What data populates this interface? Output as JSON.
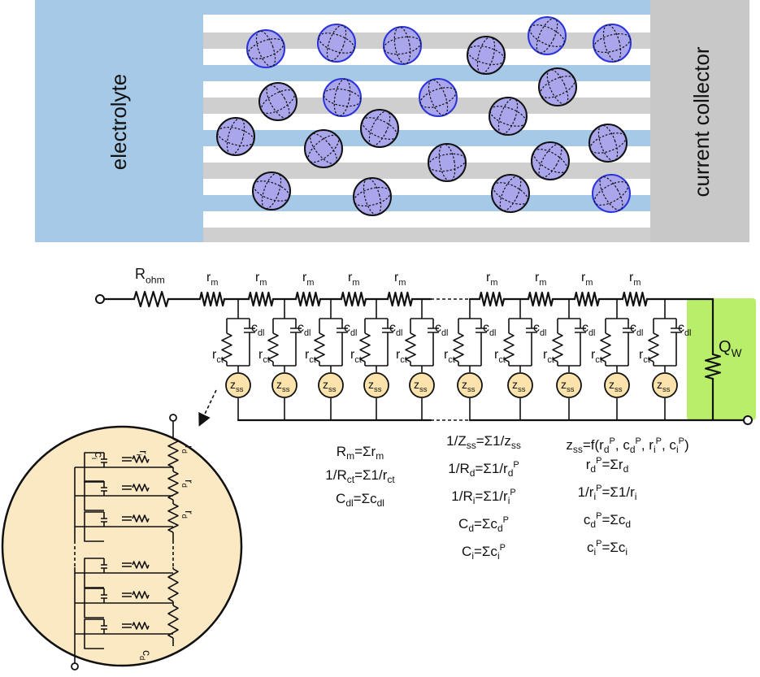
{
  "top_panel": {
    "left_label": "electrolyte",
    "right_label": "current collector"
  },
  "circuit": {
    "r_ohm": "R",
    "r_ohm_sub": "ohm",
    "r_m": "r",
    "r_m_sub": "m",
    "c_dl": "c",
    "c_dl_sub": "dl",
    "r_ct": "r",
    "r_ct_sub": "ct",
    "z_ss": "z",
    "z_ss_sub": "ss",
    "q_w": "Q",
    "q_w_sub": "W"
  },
  "inset": {
    "c_i": "c",
    "c_i_sub": "i",
    "r_i": "r",
    "r_i_sub": "i",
    "r_d": "r",
    "r_d_sub": "d",
    "c_d": "c",
    "c_d_sub": "d"
  },
  "equations": {
    "col1": [
      {
        "a": "R",
        "as": "m",
        "b": "=Σr",
        "bs": "m"
      },
      {
        "a": "1/R",
        "as": "ct",
        "b": "=Σ1/r",
        "bs": "ct"
      },
      {
        "a": "C",
        "as": "dl",
        "b": "=Σc",
        "bs": "dl"
      }
    ],
    "col2": [
      {
        "a": "1/Z",
        "as": "ss",
        "b": "=Σ1/z",
        "bs": "ss"
      },
      {
        "a": "1/R",
        "as": "d",
        "b": "=Σ1/r",
        "bs": "d",
        "bp": "P"
      },
      {
        "a": "1/R",
        "as": "i",
        "b": "=Σ1/r",
        "bs": "i",
        "bp": "P"
      },
      {
        "a": "C",
        "as": "d",
        "b": "=Σc",
        "bs": "d",
        "bp": "P"
      },
      {
        "a": "C",
        "as": "i",
        "b": "=Σc",
        "bs": "i",
        "bp": "P"
      }
    ],
    "col3_head": {
      "a": "z",
      "as": "ss",
      "b": "=f(r",
      "s1": "d",
      "p1": "P",
      "t1": ", c",
      "s2": "d",
      "p2": "P",
      "t2": ", r",
      "s3": "i",
      "p3": "P",
      "t3": ", c",
      "s4": "i",
      "p4": "P",
      "t4": ")"
    },
    "col3": [
      {
        "a": "r",
        "as": "d",
        "ap": "P",
        "b": "=Σr",
        "bs": "d"
      },
      {
        "a": "1/r",
        "as": "i",
        "ap": "P",
        "b": "=Σ1/r",
        "bs": "i"
      },
      {
        "a": "c",
        "as": "d",
        "ap": "P",
        "b": "=Σc",
        "bs": "d"
      },
      {
        "a": "c",
        "as": "i",
        "ap": "P",
        "b": "=Σc",
        "bs": "i"
      }
    ]
  },
  "colors": {
    "electrolyte": "#a6c9e8",
    "collector": "#c8c8c8",
    "stripe_gray": "#cfcfcf",
    "stripe_blue": "#a6c9e8",
    "particle": "#a9a6ec",
    "inset_fill": "#fbe9c4",
    "zss_fill": "#fbe3ab",
    "qw_glow": "#b9ee6a"
  }
}
